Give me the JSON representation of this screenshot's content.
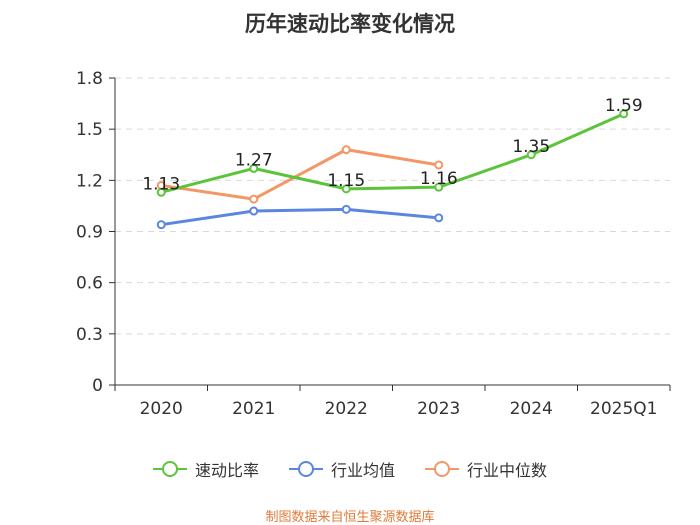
{
  "title": "历年速动比率变化情况",
  "footer": "制图数据来自恒生聚源数据库",
  "chart_data": {
    "type": "line",
    "categories": [
      "2020",
      "2021",
      "2022",
      "2023",
      "2024",
      "2025Q1"
    ],
    "yticks": [
      "0",
      "0.3",
      "0.6",
      "0.9",
      "1.2",
      "1.5",
      "1.8"
    ],
    "ylim": [
      0,
      1.8
    ],
    "grid": true,
    "legend_position": "bottom",
    "series": [
      {
        "name": "速动比率",
        "color": "#5cc43a",
        "values": [
          1.13,
          1.27,
          1.15,
          1.16,
          1.35,
          1.59
        ],
        "labels": [
          "1.13",
          "1.27",
          "1.15",
          "1.16",
          "1.35",
          "1.59"
        ]
      },
      {
        "name": "行业均值",
        "color": "#5b86e0",
        "values": [
          0.94,
          1.02,
          1.03,
          0.98,
          null,
          null
        ]
      },
      {
        "name": "行业中位数",
        "color": "#f39766",
        "values": [
          1.17,
          1.09,
          1.38,
          1.29,
          null,
          null
        ]
      }
    ]
  }
}
